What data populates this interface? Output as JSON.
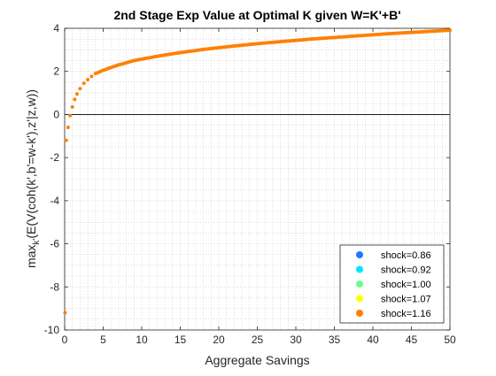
{
  "chart_data": {
    "type": "scatter",
    "title": "2nd Stage Exp Value at Optimal K given W=K'+B'",
    "xlabel": "Aggregate Savings",
    "ylabel_parts": [
      "max",
      "k'",
      "(E(V(coh(k',b'=w-k'),z'|z,w))"
    ],
    "xlim": [
      0,
      50
    ],
    "ylim": [
      -10,
      4
    ],
    "xticks": [
      0,
      5,
      10,
      15,
      20,
      25,
      30,
      35,
      40,
      45,
      50
    ],
    "yticks": [
      -10,
      -8,
      -6,
      -4,
      -2,
      0,
      2,
      4
    ],
    "grid": "minor-dotted",
    "zero_line": true,
    "legend_position": "bottom-right",
    "series": [
      {
        "name": "shock=0.86",
        "color": "#1f77ff"
      },
      {
        "name": "shock=0.92",
        "color": "#00e5ff"
      },
      {
        "name": "shock=1.00",
        "color": "#66ff88"
      },
      {
        "name": "shock=1.07",
        "color": "#ffff00"
      },
      {
        "name": "shock=1.16",
        "color": "#ff8000"
      }
    ],
    "visible_points": [
      [
        0.05,
        -9.2
      ],
      [
        0.2,
        -1.2
      ],
      [
        0.45,
        -0.6
      ],
      [
        0.7,
        -0.05
      ],
      [
        1.0,
        0.35
      ],
      [
        1.3,
        0.7
      ],
      [
        1.6,
        0.95
      ],
      [
        2.0,
        1.2
      ],
      [
        2.5,
        1.45
      ],
      [
        3.0,
        1.62
      ],
      [
        3.5,
        1.77
      ],
      [
        4.0,
        1.9
      ],
      [
        5,
        2.05
      ],
      [
        6,
        2.18
      ],
      [
        7,
        2.3
      ],
      [
        8,
        2.4
      ],
      [
        9,
        2.5
      ],
      [
        10,
        2.57
      ],
      [
        12,
        2.7
      ],
      [
        14,
        2.82
      ],
      [
        16,
        2.92
      ],
      [
        18,
        3.02
      ],
      [
        20,
        3.1
      ],
      [
        22,
        3.18
      ],
      [
        24,
        3.25
      ],
      [
        26,
        3.32
      ],
      [
        28,
        3.38
      ],
      [
        30,
        3.44
      ],
      [
        32,
        3.5
      ],
      [
        34,
        3.55
      ],
      [
        36,
        3.6
      ],
      [
        38,
        3.65
      ],
      [
        40,
        3.7
      ],
      [
        42,
        3.75
      ],
      [
        44,
        3.79
      ],
      [
        46,
        3.83
      ],
      [
        48,
        3.87
      ],
      [
        50,
        3.91
      ]
    ]
  }
}
